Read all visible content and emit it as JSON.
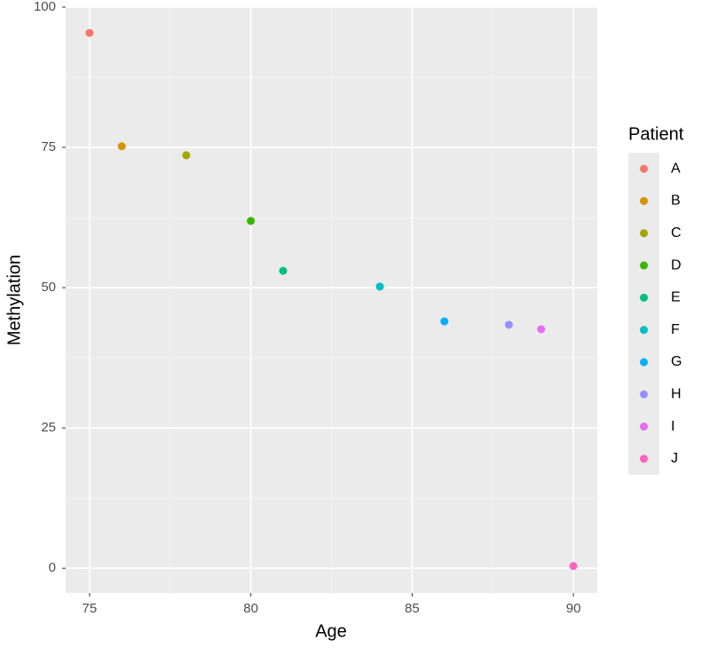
{
  "chart_data": {
    "type": "scatter",
    "x_label": "Age",
    "y_label": "Methylation",
    "legend_title": "Patient",
    "xlim": [
      74.26,
      90.74
    ],
    "ylim": [
      -4.4,
      100
    ],
    "xticks": [
      75,
      80,
      85,
      90
    ],
    "yticks": [
      0,
      25,
      50,
      75,
      100
    ],
    "grid": true,
    "legend_position": "right",
    "series": [
      {
        "name": "A",
        "color": "#F8766D",
        "x": [
          75
        ],
        "values": [
          95.4
        ]
      },
      {
        "name": "B",
        "color": "#D89000",
        "x": [
          76
        ],
        "values": [
          75.2
        ]
      },
      {
        "name": "C",
        "color": "#A3A500",
        "x": [
          78
        ],
        "values": [
          73.6
        ]
      },
      {
        "name": "D",
        "color": "#39B600",
        "x": [
          80
        ],
        "values": [
          61.9
        ]
      },
      {
        "name": "E",
        "color": "#00BF7D",
        "x": [
          81
        ],
        "values": [
          53.0
        ]
      },
      {
        "name": "F",
        "color": "#00BFC4",
        "x": [
          84
        ],
        "values": [
          50.2
        ]
      },
      {
        "name": "G",
        "color": "#00B0F6",
        "x": [
          86
        ],
        "values": [
          44.0
        ]
      },
      {
        "name": "H",
        "color": "#9590FF",
        "x": [
          88
        ],
        "values": [
          43.4
        ]
      },
      {
        "name": "I",
        "color": "#E76BF3",
        "x": [
          89
        ],
        "values": [
          42.6
        ]
      },
      {
        "name": "J",
        "color": "#FF62BC",
        "x": [
          90
        ],
        "values": [
          0.4
        ]
      }
    ]
  }
}
